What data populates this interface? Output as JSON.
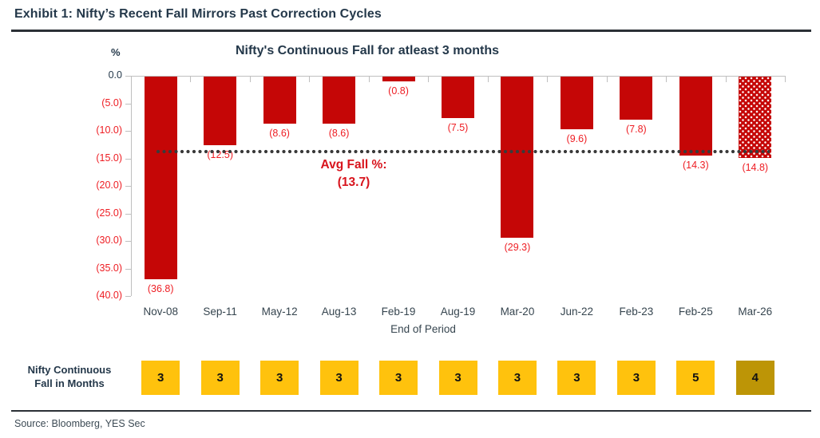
{
  "header": {
    "title": "Exhibit 1: Nifty’s Recent Fall Mirrors Past Correction Cycles"
  },
  "source": {
    "label": "Source: Bloomberg, YES Sec"
  },
  "chart_data": {
    "type": "bar",
    "title": "Nifty's Continuous Fall for atleast 3 months",
    "unit_label": "%",
    "xlabel": "End of Period",
    "ylim": [
      -40,
      0
    ],
    "ytick_labels": [
      "0.0",
      "(5.0)",
      "(10.0)",
      "(15.0)",
      "(20.0)",
      "(25.0)",
      "(30.0)",
      "(35.0)",
      "(40.0)"
    ],
    "categories": [
      "Nov-08",
      "Sep-11",
      "May-12",
      "Aug-13",
      "Feb-19",
      "Aug-19",
      "Mar-20",
      "Jun-22",
      "Feb-23",
      "Feb-25",
      "Mar-26"
    ],
    "values": [
      -36.8,
      -12.5,
      -8.6,
      -8.6,
      -0.8,
      -7.5,
      -29.3,
      -9.6,
      -7.8,
      -14.3,
      -14.8
    ],
    "bar_labels": [
      "(36.8)",
      "(12.5)",
      "(8.6)",
      "(8.6)",
      "(0.8)",
      "(7.5)",
      "(29.3)",
      "(9.6)",
      "(7.8)",
      "(14.3)",
      "(14.8)"
    ],
    "highlighted_category": "Mar-26",
    "average": {
      "value": -13.7,
      "label_line1": "Avg Fall %:",
      "label_line2": "(13.7)"
    },
    "months_row": {
      "label_line1": "Nifty Continuous",
      "label_line2": "Fall in Months",
      "values": [
        3,
        3,
        3,
        3,
        3,
        3,
        3,
        3,
        3,
        5,
        4
      ],
      "highlighted_index": 10
    },
    "legend_position": "none",
    "grid": false,
    "colors": {
      "bar": "#c50606",
      "bar_label": "#ee1d23",
      "avg_line": "#3a3a3a",
      "avg_text": "#d8141d",
      "months_box": "#ffc20d",
      "months_box_highlight": "#bd9506",
      "title_text": "#24384a",
      "axis_line": "#bfbfbf"
    }
  }
}
